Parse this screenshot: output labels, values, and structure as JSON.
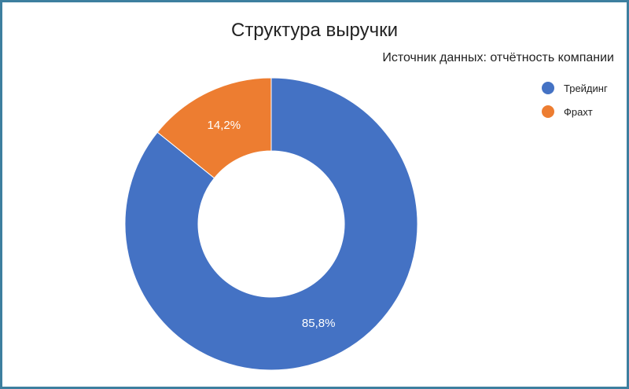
{
  "chart_data": {
    "type": "pie",
    "title": "Структура выручки",
    "subtitle": "Источник данных: отчётность компании",
    "donut": true,
    "legend_position": "top-right",
    "slices": [
      {
        "name": "Трейдинг",
        "value": 85.8,
        "label": "85,8%",
        "color": "#4472c4"
      },
      {
        "name": "Фрахт",
        "value": 14.2,
        "label": "14,2%",
        "color": "#ed7d31"
      }
    ]
  }
}
